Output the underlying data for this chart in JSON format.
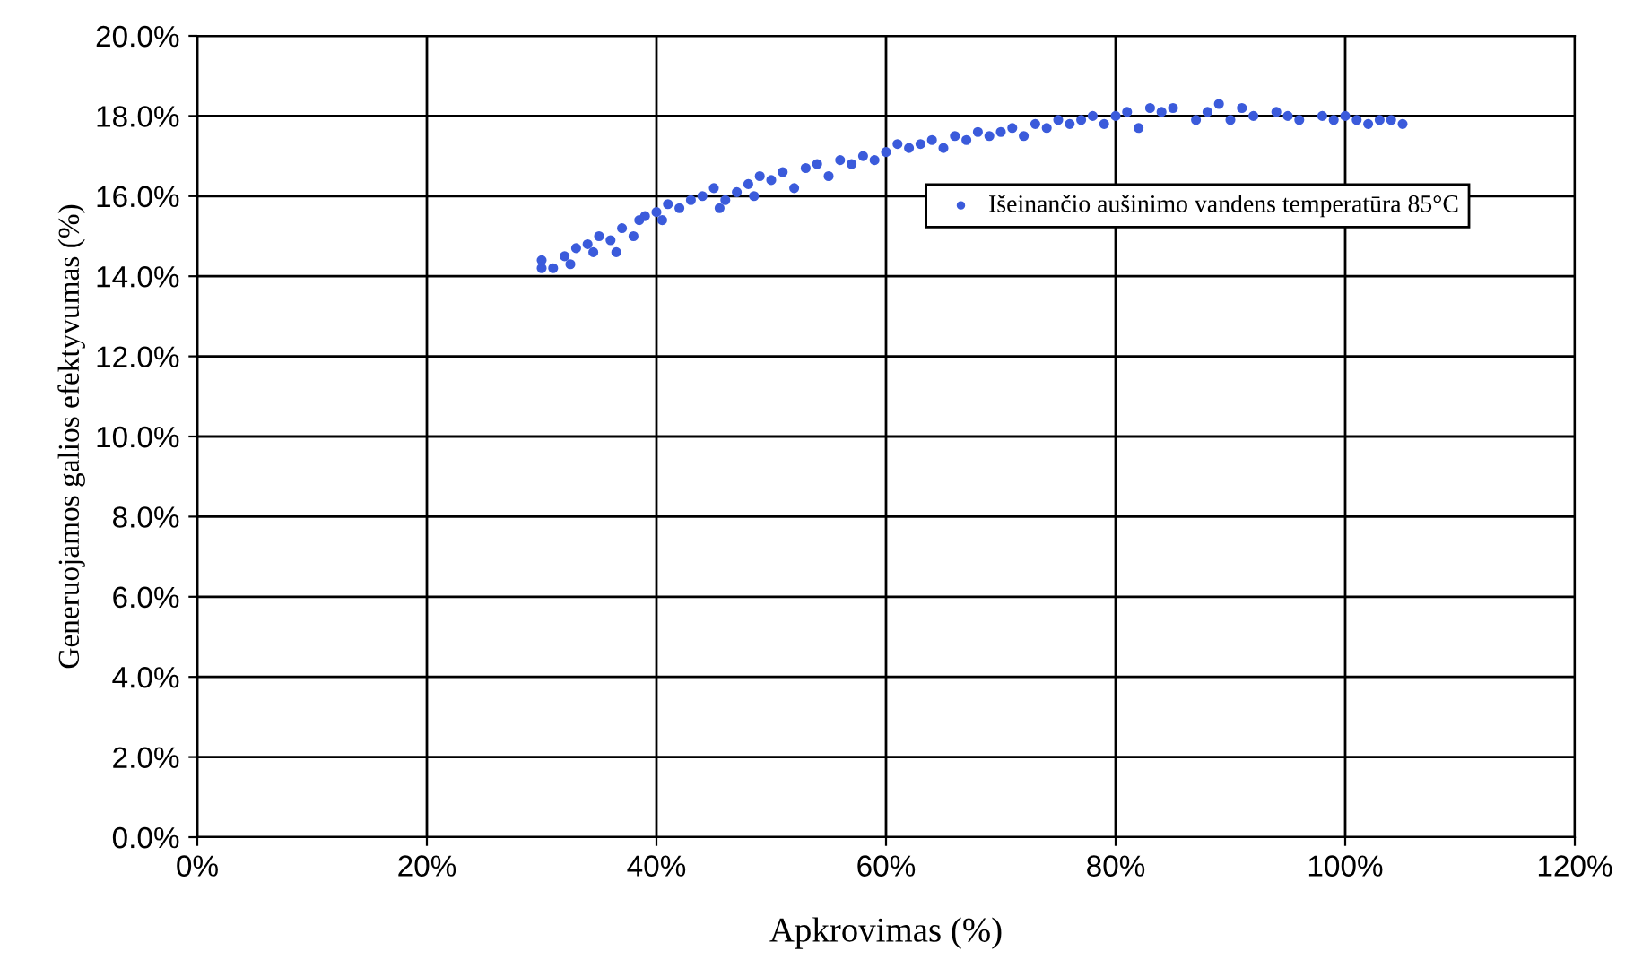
{
  "chart_data": {
    "type": "scatter",
    "xlabel": "Apkrovimas (%)",
    "ylabel": "Generuojamos galios efektyvumas (%)",
    "xlim": [
      0,
      120
    ],
    "ylim": [
      0,
      20
    ],
    "xticks": [
      {
        "value": 0,
        "label": "0%"
      },
      {
        "value": 20,
        "label": "20%"
      },
      {
        "value": 40,
        "label": "40%"
      },
      {
        "value": 60,
        "label": "60%"
      },
      {
        "value": 80,
        "label": "80%"
      },
      {
        "value": 100,
        "label": "100%"
      },
      {
        "value": 120,
        "label": "120%"
      }
    ],
    "yticks": [
      {
        "value": 0,
        "label": "0.0%"
      },
      {
        "value": 2,
        "label": "2.0%"
      },
      {
        "value": 4,
        "label": "4.0%"
      },
      {
        "value": 6,
        "label": "6.0%"
      },
      {
        "value": 8,
        "label": "8.0%"
      },
      {
        "value": 10,
        "label": "10.0%"
      },
      {
        "value": 12,
        "label": "12.0%"
      },
      {
        "value": 14,
        "label": "14.0%"
      },
      {
        "value": 16,
        "label": "16.0%"
      },
      {
        "value": 18,
        "label": "18.0%"
      },
      {
        "value": 20,
        "label": "20.0%"
      }
    ],
    "grid": true,
    "legend": "right",
    "marker": "circle",
    "series": [
      {
        "name": "Išeinančio aušinimo vandens temperatūra 85°C",
        "color": "#3b5bdb",
        "x": [
          30,
          30,
          31,
          32,
          32.5,
          33,
          34,
          34.5,
          35,
          36,
          36.5,
          37,
          38,
          38.5,
          39,
          40,
          40.5,
          41,
          42,
          43,
          44,
          45,
          45.5,
          46,
          47,
          48,
          48.5,
          49,
          50,
          51,
          52,
          53,
          54,
          55,
          56,
          57,
          58,
          59,
          60,
          61,
          62,
          63,
          64,
          65,
          66,
          67,
          68,
          69,
          70,
          71,
          72,
          73,
          74,
          75,
          76,
          77,
          78,
          79,
          80,
          81,
          82,
          83,
          84,
          85,
          87,
          88,
          89,
          90,
          91,
          92,
          94,
          95,
          96,
          98,
          99,
          100,
          101,
          102,
          103,
          104,
          105
        ],
        "values": [
          14.2,
          14.4,
          14.2,
          14.5,
          14.3,
          14.7,
          14.8,
          14.6,
          15.0,
          14.9,
          14.6,
          15.2,
          15.0,
          15.4,
          15.5,
          15.6,
          15.4,
          15.8,
          15.7,
          15.9,
          16.0,
          16.2,
          15.7,
          15.9,
          16.1,
          16.3,
          16.0,
          16.5,
          16.4,
          16.6,
          16.2,
          16.7,
          16.8,
          16.5,
          16.9,
          16.8,
          17.0,
          16.9,
          17.1,
          17.3,
          17.2,
          17.3,
          17.4,
          17.2,
          17.5,
          17.4,
          17.6,
          17.5,
          17.6,
          17.7,
          17.5,
          17.8,
          17.7,
          17.9,
          17.8,
          17.9,
          18.0,
          17.8,
          18.0,
          18.1,
          17.7,
          18.2,
          18.1,
          18.2,
          17.9,
          18.1,
          18.3,
          17.9,
          18.2,
          18.0,
          18.1,
          18.0,
          17.9,
          18.0,
          17.9,
          18.0,
          17.9,
          17.8,
          17.9,
          17.9,
          17.8
        ]
      }
    ]
  }
}
